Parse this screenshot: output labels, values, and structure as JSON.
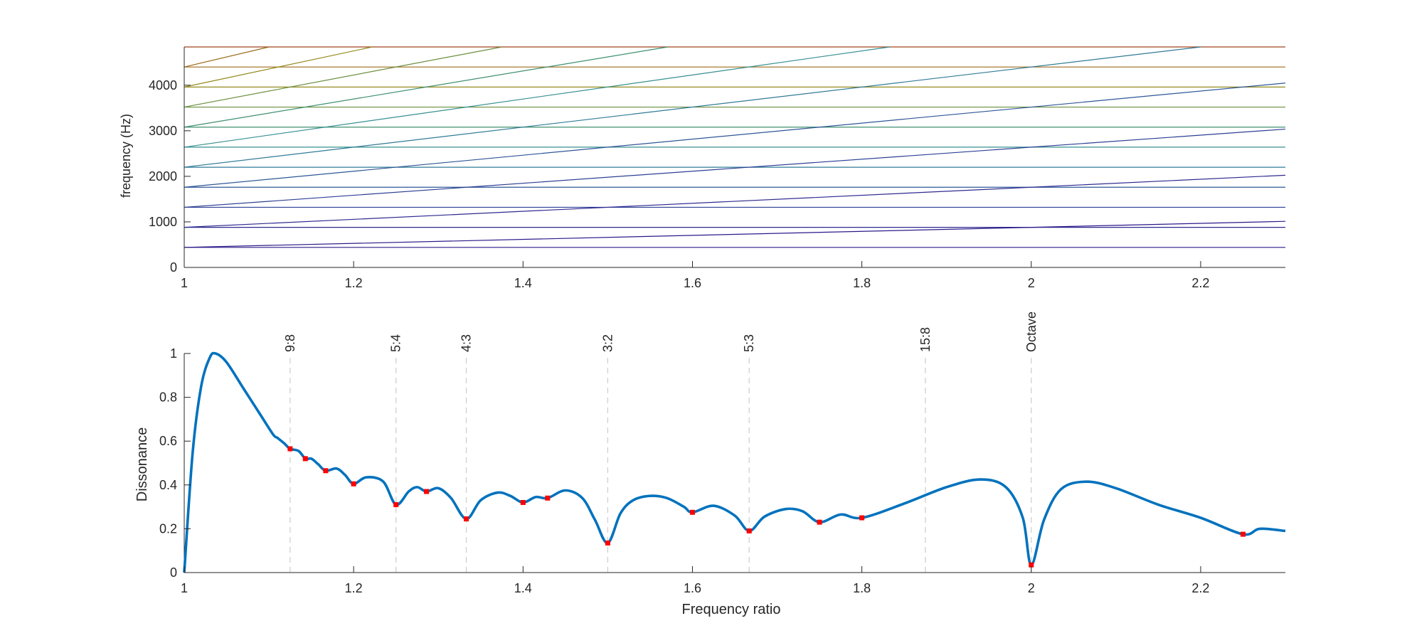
{
  "chart_data": [
    {
      "type": "line",
      "title": "",
      "xlabel": "",
      "ylabel": "frequency (Hz)",
      "xlim": [
        1,
        2.3
      ],
      "ylim": [
        0,
        4840
      ],
      "xticks": [
        1,
        1.2,
        1.4,
        1.6,
        1.8,
        2,
        2.2
      ],
      "xtick_labels": [
        "1",
        "1.2",
        "1.4",
        "1.6",
        "1.8",
        "2",
        "2.2"
      ],
      "yticks": [
        0,
        1000,
        2000,
        3000,
        4000
      ],
      "ytick_labels": [
        "0",
        "1000",
        "2000",
        "3000",
        "4000"
      ],
      "grid": false,
      "fundamental_hz": 440,
      "harmonic_count": 11,
      "fixed_partials_hz": [
        440,
        880,
        1320,
        1760,
        2200,
        2640,
        3080,
        3520,
        3960,
        4400,
        4840
      ],
      "swept_partials": [
        {
          "harmonic": 1,
          "x_end": 2.3,
          "y_start": 440,
          "y_end": 1012
        },
        {
          "harmonic": 2,
          "x_end": 2.3,
          "y_start": 880,
          "y_end": 2024
        },
        {
          "harmonic": 3,
          "x_end": 2.3,
          "y_start": 1320,
          "y_end": 3036
        },
        {
          "harmonic": 4,
          "x_end": 2.3,
          "y_start": 1760,
          "y_end": 4048
        },
        {
          "harmonic": 5,
          "x_end": 2.2,
          "y_start": 2200,
          "y_end": 4840
        },
        {
          "harmonic": 6,
          "x_end": 1.833,
          "y_start": 2640,
          "y_end": 4840
        },
        {
          "harmonic": 7,
          "x_end": 1.571,
          "y_start": 3080,
          "y_end": 4840
        },
        {
          "harmonic": 8,
          "x_end": 1.375,
          "y_start": 3520,
          "y_end": 4840
        },
        {
          "harmonic": 9,
          "x_end": 1.222,
          "y_start": 3960,
          "y_end": 4840
        },
        {
          "harmonic": 10,
          "x_end": 1.1,
          "y_start": 4400,
          "y_end": 4840
        }
      ],
      "colors": [
        "#2b1a8a",
        "#2e2a90",
        "#2c3f94",
        "#2d5696",
        "#2f7a95",
        "#368f90",
        "#3f8f6e",
        "#6b8e3c",
        "#948a1e",
        "#9b6b1a",
        "#a0441e"
      ]
    },
    {
      "type": "line",
      "title": "",
      "xlabel": "Frequency ratio",
      "ylabel": "Dissonance",
      "xlim": [
        1,
        2.3
      ],
      "ylim": [
        0,
        1
      ],
      "xticks": [
        1,
        1.2,
        1.4,
        1.6,
        1.8,
        2,
        2.2
      ],
      "xtick_labels": [
        "1",
        "1.2",
        "1.4",
        "1.6",
        "1.8",
        "2",
        "2.2"
      ],
      "yticks": [
        0,
        0.2,
        0.4,
        0.6,
        0.8,
        1
      ],
      "ytick_labels": [
        "0",
        "0.2",
        "0.4",
        "0.6",
        "0.8",
        "1"
      ],
      "grid": false,
      "line_color": "#0072bd",
      "marker_color": "#ff0000",
      "curve": {
        "x": [
          1,
          1.01,
          1.02,
          1.03,
          1.037,
          1.05,
          1.07,
          1.09,
          1.105,
          1.11,
          1.118,
          1.125,
          1.135,
          1.143,
          1.15,
          1.158,
          1.167,
          1.18,
          1.19,
          1.2,
          1.215,
          1.235,
          1.25,
          1.265,
          1.275,
          1.286,
          1.3,
          1.315,
          1.333,
          1.35,
          1.37,
          1.385,
          1.4,
          1.415,
          1.429,
          1.45,
          1.47,
          1.485,
          1.5,
          1.515,
          1.53,
          1.55,
          1.57,
          1.59,
          1.6,
          1.625,
          1.65,
          1.667,
          1.685,
          1.71,
          1.73,
          1.75,
          1.775,
          1.8,
          1.85,
          1.9,
          1.94,
          1.97,
          1.99,
          2,
          2.015,
          2.035,
          2.065,
          2.1,
          2.15,
          2.2,
          2.25,
          2.27,
          2.3
        ],
        "y": [
          0,
          0.55,
          0.85,
          0.98,
          1.0,
          0.96,
          0.84,
          0.72,
          0.63,
          0.615,
          0.59,
          0.565,
          0.555,
          0.52,
          0.52,
          0.495,
          0.465,
          0.475,
          0.445,
          0.405,
          0.435,
          0.415,
          0.31,
          0.37,
          0.39,
          0.37,
          0.385,
          0.34,
          0.245,
          0.33,
          0.365,
          0.35,
          0.32,
          0.345,
          0.34,
          0.375,
          0.34,
          0.24,
          0.135,
          0.27,
          0.33,
          0.35,
          0.34,
          0.3,
          0.275,
          0.305,
          0.26,
          0.19,
          0.255,
          0.29,
          0.28,
          0.23,
          0.265,
          0.25,
          0.315,
          0.39,
          0.425,
          0.39,
          0.25,
          0.035,
          0.24,
          0.38,
          0.415,
          0.385,
          0.31,
          0.25,
          0.175,
          0.2,
          0.19
        ]
      },
      "markers": {
        "x": [
          1.125,
          1.143,
          1.167,
          1.2,
          1.25,
          1.286,
          1.333,
          1.4,
          1.429,
          1.5,
          1.6,
          1.667,
          1.75,
          1.8,
          2,
          2.25
        ],
        "y": [
          0.565,
          0.52,
          0.465,
          0.405,
          0.31,
          0.37,
          0.245,
          0.32,
          0.34,
          0.135,
          0.275,
          0.19,
          0.23,
          0.25,
          0.035,
          0.175
        ]
      },
      "annotations": [
        {
          "x": 1.125,
          "label": "9:8"
        },
        {
          "x": 1.25,
          "label": "5:4"
        },
        {
          "x": 1.333,
          "label": "4:3"
        },
        {
          "x": 1.5,
          "label": "3:2"
        },
        {
          "x": 1.667,
          "label": "5:3"
        },
        {
          "x": 1.875,
          "label": "15:8"
        },
        {
          "x": 2,
          "label": "Octave"
        }
      ]
    }
  ]
}
